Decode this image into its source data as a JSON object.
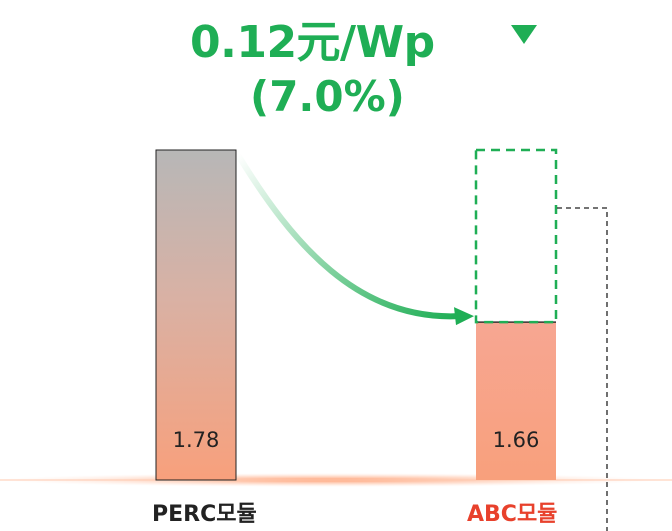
{
  "headline": {
    "amount": "0.12元/Wp",
    "percent": "(7.0%)",
    "color": "#1fae55",
    "arrow_icon": "triangle-down-icon"
  },
  "chart_data": {
    "type": "bar",
    "categories": [
      "PERC모듈",
      "ABC모듈"
    ],
    "values": [
      1.78,
      1.66
    ],
    "value_labels": [
      "1.78",
      "1.66"
    ],
    "reduction": 0.12,
    "reduction_percent": 7.0,
    "category_colors": [
      "#222222",
      "#e8412c"
    ],
    "bar_gradient_top": [
      "#b7b7b7",
      "#f7a692"
    ],
    "bar_gradient_bottom": "#f8a07c",
    "highlight_color": "#1fae55",
    "y_baseline": 1.55
  }
}
